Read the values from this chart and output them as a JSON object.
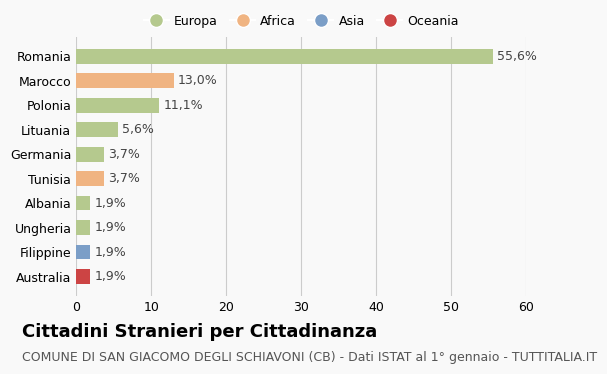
{
  "countries": [
    "Romania",
    "Marocco",
    "Polonia",
    "Lituania",
    "Germania",
    "Tunisia",
    "Albania",
    "Ungheria",
    "Filippine",
    "Australia"
  ],
  "values": [
    55.6,
    13.0,
    11.1,
    5.6,
    3.7,
    3.7,
    1.9,
    1.9,
    1.9,
    1.9
  ],
  "labels": [
    "55,6%",
    "13,0%",
    "11,1%",
    "5,6%",
    "3,7%",
    "3,7%",
    "1,9%",
    "1,9%",
    "1,9%",
    "1,9%"
  ],
  "colors": [
    "#b5c98e",
    "#f0b482",
    "#b5c98e",
    "#b5c98e",
    "#b5c98e",
    "#f0b482",
    "#b5c98e",
    "#b5c98e",
    "#7b9ec7",
    "#cc4444"
  ],
  "legend": [
    {
      "label": "Europa",
      "color": "#b5c98e"
    },
    {
      "label": "Africa",
      "color": "#f0b482"
    },
    {
      "label": "Asia",
      "color": "#7b9ec7"
    },
    {
      "label": "Oceania",
      "color": "#cc4444"
    }
  ],
  "xlim": [
    0,
    60
  ],
  "xticks": [
    0,
    10,
    20,
    30,
    40,
    50,
    60
  ],
  "title": "Cittadini Stranieri per Cittadinanza",
  "subtitle": "COMUNE DI SAN GIACOMO DEGLI SCHIAVONI (CB) - Dati ISTAT al 1° gennaio - TUTTITALIA.IT",
  "bg_color": "#f9f9f9",
  "grid_color": "#cccccc",
  "bar_height": 0.6,
  "label_fontsize": 9,
  "title_fontsize": 13,
  "subtitle_fontsize": 9
}
